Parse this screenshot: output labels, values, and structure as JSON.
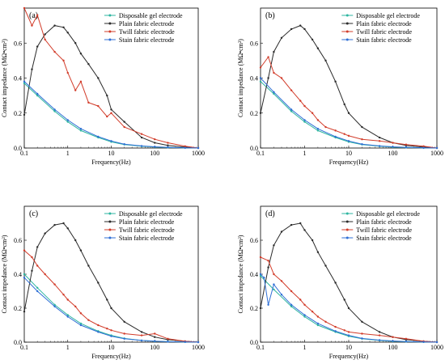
{
  "figure": {
    "colors": {
      "Disposable gel electrode": "#2db5a0",
      "Plain fabric electrode": "#2a2a2a",
      "Twill fabric electrode": "#d23c2a",
      "Stain fabric electrode": "#2f6fd6"
    }
  },
  "chart_data": [
    {
      "type": "line",
      "panel_label": "(a)",
      "xlabel": "Frequency(Hz)",
      "ylabel": "Contact impedance (MΩ•cm²)",
      "x_scale": "log",
      "xlim": [
        0.1,
        1000
      ],
      "ylim": [
        0,
        0.8
      ],
      "xticks": [
        "0.1",
        "1",
        "10",
        "100",
        "1000"
      ],
      "yticks": [
        "0.0",
        "0.2",
        "0.4",
        "0.6"
      ],
      "legend_position": "top-right",
      "series": [
        {
          "name": "Disposable gel electrode",
          "x": [
            0.1,
            0.2,
            0.5,
            1,
            2,
            5,
            10,
            20,
            50,
            100,
            200,
            500,
            1000
          ],
          "y": [
            0.37,
            0.3,
            0.21,
            0.15,
            0.1,
            0.06,
            0.035,
            0.02,
            0.01,
            0.006,
            0.003,
            0.001,
            0.0
          ]
        },
        {
          "name": "Plain fabric electrode",
          "x": [
            0.1,
            0.15,
            0.2,
            0.3,
            0.5,
            0.8,
            1,
            1.5,
            2,
            3,
            5,
            8,
            10,
            20,
            50,
            100,
            200,
            500,
            1000
          ],
          "y": [
            0.19,
            0.45,
            0.58,
            0.65,
            0.7,
            0.69,
            0.66,
            0.6,
            0.54,
            0.48,
            0.4,
            0.3,
            0.22,
            0.15,
            0.06,
            0.03,
            0.015,
            0.005,
            0.0
          ]
        },
        {
          "name": "Twill fabric electrode",
          "x": [
            0.1,
            0.15,
            0.2,
            0.3,
            0.5,
            0.8,
            1,
            1.5,
            2,
            3,
            5,
            8,
            10,
            20,
            50,
            100,
            200,
            500,
            1000
          ],
          "y": [
            0.8,
            0.7,
            0.76,
            0.62,
            0.55,
            0.5,
            0.43,
            0.33,
            0.38,
            0.26,
            0.24,
            0.18,
            0.2,
            0.12,
            0.08,
            0.05,
            0.03,
            0.01,
            0.0
          ]
        },
        {
          "name": "Stain fabric electrode",
          "x": [
            0.1,
            0.2,
            0.5,
            1,
            2,
            5,
            10,
            20,
            50,
            100,
            200,
            500,
            1000
          ],
          "y": [
            0.38,
            0.31,
            0.22,
            0.16,
            0.11,
            0.065,
            0.04,
            0.022,
            0.012,
            0.007,
            0.004,
            0.001,
            0.0
          ]
        }
      ]
    },
    {
      "type": "line",
      "panel_label": "(b)",
      "xlabel": "Frequency(Hz)",
      "ylabel": "Contact impedance (MΩ•cm²)",
      "x_scale": "log",
      "xlim": [
        0.1,
        1000
      ],
      "ylim": [
        0,
        0.8
      ],
      "xticks": [
        "0.1",
        "1",
        "10",
        "100",
        "1000"
      ],
      "yticks": [
        "0.0",
        "0.2",
        "0.4",
        "0.6"
      ],
      "legend_position": "top-right",
      "series": [
        {
          "name": "Disposable gel electrode",
          "x": [
            0.1,
            0.2,
            0.5,
            1,
            2,
            5,
            10,
            20,
            50,
            100,
            200,
            500,
            1000
          ],
          "y": [
            0.38,
            0.31,
            0.21,
            0.15,
            0.1,
            0.06,
            0.035,
            0.02,
            0.01,
            0.005,
            0.003,
            0.001,
            0.0
          ]
        },
        {
          "name": "Plain fabric electrode",
          "x": [
            0.1,
            0.15,
            0.2,
            0.3,
            0.5,
            0.8,
            1,
            1.5,
            2,
            3,
            5,
            8,
            10,
            20,
            50,
            100,
            200,
            500,
            1000
          ],
          "y": [
            0.2,
            0.4,
            0.55,
            0.63,
            0.68,
            0.7,
            0.68,
            0.62,
            0.57,
            0.5,
            0.38,
            0.25,
            0.2,
            0.12,
            0.06,
            0.03,
            0.015,
            0.005,
            0.0
          ]
        },
        {
          "name": "Twill fabric electrode",
          "x": [
            0.1,
            0.15,
            0.2,
            0.3,
            0.5,
            0.8,
            1,
            1.5,
            2,
            3,
            5,
            8,
            10,
            20,
            50,
            100,
            200,
            500,
            1000
          ],
          "y": [
            0.46,
            0.52,
            0.43,
            0.4,
            0.33,
            0.27,
            0.24,
            0.2,
            0.16,
            0.12,
            0.1,
            0.08,
            0.07,
            0.05,
            0.04,
            0.03,
            0.02,
            0.01,
            0.0
          ]
        },
        {
          "name": "Stain fabric electrode",
          "x": [
            0.1,
            0.2,
            0.5,
            1,
            2,
            5,
            10,
            20,
            50,
            100,
            200,
            500,
            1000
          ],
          "y": [
            0.4,
            0.32,
            0.22,
            0.16,
            0.11,
            0.065,
            0.04,
            0.022,
            0.012,
            0.007,
            0.004,
            0.001,
            0.0
          ]
        }
      ]
    },
    {
      "type": "line",
      "panel_label": "(c)",
      "xlabel": "Frequency(Hz)",
      "ylabel": "Contact impedance (MΩ•cm²)",
      "x_scale": "log",
      "xlim": [
        0.1,
        1000
      ],
      "ylim": [
        0,
        0.8
      ],
      "xticks": [
        "0.1",
        "1",
        "10",
        "100",
        "1000"
      ],
      "yticks": [
        "0.0",
        "0.2",
        "0.4",
        "0.6"
      ],
      "legend_position": "top-right",
      "series": [
        {
          "name": "Disposable gel electrode",
          "x": [
            0.1,
            0.2,
            0.5,
            1,
            2,
            5,
            10,
            20,
            50,
            100,
            200,
            500,
            1000
          ],
          "y": [
            0.4,
            0.32,
            0.22,
            0.16,
            0.11,
            0.065,
            0.04,
            0.022,
            0.01,
            0.005,
            0.003,
            0.001,
            0.0
          ]
        },
        {
          "name": "Plain fabric electrode",
          "x": [
            0.1,
            0.15,
            0.2,
            0.3,
            0.5,
            0.8,
            1,
            1.5,
            2,
            3,
            5,
            8,
            10,
            20,
            50,
            100,
            200,
            500,
            1000
          ],
          "y": [
            0.18,
            0.42,
            0.56,
            0.64,
            0.69,
            0.7,
            0.67,
            0.6,
            0.54,
            0.45,
            0.35,
            0.25,
            0.2,
            0.12,
            0.06,
            0.03,
            0.015,
            0.005,
            0.0
          ]
        },
        {
          "name": "Twill fabric electrode",
          "x": [
            0.1,
            0.15,
            0.2,
            0.3,
            0.5,
            0.8,
            1,
            1.5,
            2,
            3,
            5,
            8,
            10,
            20,
            50,
            100,
            200,
            500,
            1000
          ],
          "y": [
            0.54,
            0.5,
            0.45,
            0.4,
            0.34,
            0.28,
            0.25,
            0.21,
            0.17,
            0.13,
            0.1,
            0.08,
            0.07,
            0.05,
            0.04,
            0.05,
            0.02,
            0.005,
            0.0
          ]
        },
        {
          "name": "Stain fabric electrode",
          "x": [
            0.1,
            0.2,
            0.5,
            1,
            2,
            5,
            10,
            20,
            50,
            100,
            200,
            500,
            1000
          ],
          "y": [
            0.38,
            0.3,
            0.21,
            0.15,
            0.1,
            0.06,
            0.035,
            0.02,
            0.01,
            0.006,
            0.003,
            0.001,
            0.0
          ]
        }
      ]
    },
    {
      "type": "line",
      "panel_label": "(d)",
      "xlabel": "Frequency(Hz)",
      "ylabel": "Contact impedance (MΩ•cm²)",
      "x_scale": "log",
      "xlim": [
        0.1,
        1000
      ],
      "ylim": [
        0,
        0.8
      ],
      "xticks": [
        "0.1",
        "1",
        "10",
        "100",
        "1000"
      ],
      "yticks": [
        "0.0",
        "0.2",
        "0.4",
        "0.6"
      ],
      "legend_position": "top-right",
      "series": [
        {
          "name": "Disposable gel electrode",
          "x": [
            0.1,
            0.2,
            0.5,
            1,
            2,
            5,
            10,
            20,
            50,
            100,
            200,
            500,
            1000
          ],
          "y": [
            0.39,
            0.31,
            0.21,
            0.15,
            0.1,
            0.06,
            0.035,
            0.02,
            0.01,
            0.005,
            0.003,
            0.001,
            0.0
          ]
        },
        {
          "name": "Plain fabric electrode",
          "x": [
            0.1,
            0.15,
            0.2,
            0.3,
            0.5,
            0.8,
            1,
            1.5,
            2,
            3,
            5,
            8,
            10,
            20,
            50,
            100,
            200,
            500,
            1000
          ],
          "y": [
            0.2,
            0.44,
            0.57,
            0.65,
            0.69,
            0.7,
            0.66,
            0.6,
            0.53,
            0.45,
            0.35,
            0.25,
            0.2,
            0.12,
            0.06,
            0.03,
            0.015,
            0.005,
            0.0
          ]
        },
        {
          "name": "Twill fabric electrode",
          "x": [
            0.1,
            0.15,
            0.2,
            0.3,
            0.5,
            0.8,
            1,
            1.5,
            2,
            3,
            5,
            8,
            10,
            20,
            50,
            100,
            200,
            500,
            1000
          ],
          "y": [
            0.5,
            0.48,
            0.4,
            0.36,
            0.3,
            0.25,
            0.22,
            0.18,
            0.15,
            0.12,
            0.09,
            0.07,
            0.06,
            0.05,
            0.04,
            0.03,
            0.02,
            0.005,
            0.0
          ]
        },
        {
          "name": "Stain fabric electrode",
          "x": [
            0.1,
            0.12,
            0.15,
            0.2,
            0.3,
            0.5,
            1,
            2,
            5,
            10,
            20,
            50,
            100,
            200,
            500,
            1000
          ],
          "y": [
            0.4,
            0.38,
            0.22,
            0.34,
            0.28,
            0.22,
            0.16,
            0.11,
            0.065,
            0.04,
            0.022,
            0.012,
            0.007,
            0.004,
            0.001,
            0.0
          ]
        }
      ]
    }
  ]
}
